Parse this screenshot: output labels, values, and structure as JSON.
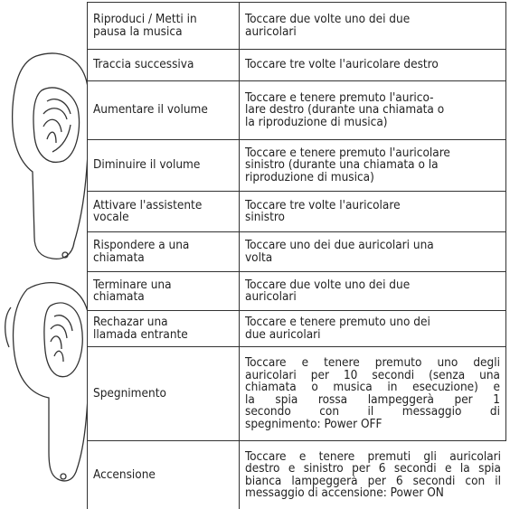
{
  "table": {
    "rows": [
      {
        "action": [
          "Riproduci / Metti in",
          "pausa la musica"
        ],
        "description": [
          "Toccare due volte uno dei due",
          "auricolari"
        ]
      },
      {
        "action": [
          "Traccia successiva"
        ],
        "description": [
          "Toccare tre volte l'auricolare destro"
        ]
      },
      {
        "action": [
          "Aumentare il volume"
        ],
        "description": [
          "Toccare e tenere premuto l'aurico-",
          "lare destro (durante una chiamata o",
          "la riproduzione di musica)"
        ]
      },
      {
        "action": [
          "Diminuire il volume"
        ],
        "description": [
          "Toccare e tenere premuto l'auricolare",
          "sinistro (durante una chiamata o la",
          "riproduzione di musica)"
        ]
      },
      {
        "action": [
          "Attivare l'assistente",
          "vocale"
        ],
        "description": [
          "Toccare tre volte l'auricolare",
          "sinistro"
        ]
      },
      {
        "action": [
          "Rispondere a una",
          "chiamata"
        ],
        "description": [
          "Toccare uno dei due auricolari una",
          "volta"
        ]
      },
      {
        "action": [
          "Terminare una",
          "chiamata"
        ],
        "description": [
          "Toccare due volte uno dei due",
          "auricolari"
        ]
      },
      {
        "action": [
          "Rechazar una",
          "llamada entrante"
        ],
        "description": [
          "Toccare e tenere premuto uno dei",
          "due auricolari"
        ]
      },
      {
        "action": [
          "Spegnimento"
        ],
        "description": [
          "Toccare e tenere premuto uno degli",
          "auricolari per 10 secondi (senza una",
          "chiamata o musica in esecuzione) e",
          "la spia rossa lampeggerà per 1",
          "secondo con il messaggio di",
          "spegnimento: Power OFF"
        ]
      },
      {
        "action": [
          "Accensione"
        ],
        "description": [
          "Toccare e tenere premuti gli auricolari",
          "destro e sinistro per 6 secondi e la spia",
          "bianca lampeggerà per 6 secondi con il",
          "messaggio di accensione: Power ON"
        ]
      }
    ]
  }
}
